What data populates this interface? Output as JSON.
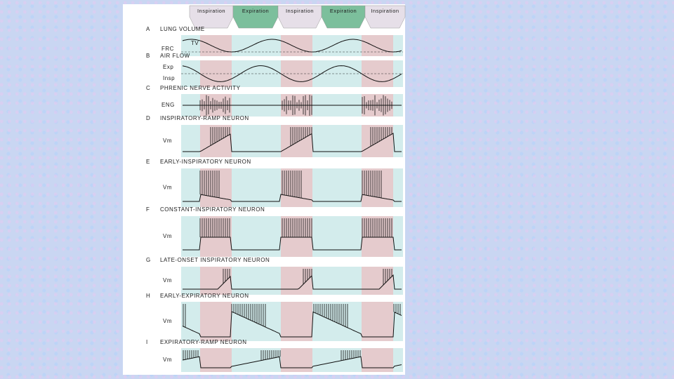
{
  "phases": [
    "Inspiration",
    "Expiration",
    "Inspiration",
    "Expiration",
    "Inspiration"
  ],
  "panels": [
    {
      "letter": "A",
      "title": "LUNG VOLUME",
      "labels": [
        "TV",
        "FRC"
      ]
    },
    {
      "letter": "B",
      "title": "AIR FLOW",
      "labels": [
        "Exp",
        "Insp"
      ]
    },
    {
      "letter": "C",
      "title": "PHRENIC NERVE ACTIVITY",
      "labels": [
        "ENG"
      ]
    },
    {
      "letter": "D",
      "title": "INSPIRATORY-RAMP NEURON",
      "labels": [
        "Vm"
      ]
    },
    {
      "letter": "E",
      "title": "EARLY-INSPIRATORY NEURON",
      "labels": [
        "Vm"
      ]
    },
    {
      "letter": "F",
      "title": "CONSTANT-INSPIRATORY NEURON",
      "labels": [
        "Vm"
      ]
    },
    {
      "letter": "G",
      "title": "LATE-ONSET INSPIRATORY NEURON",
      "labels": [
        "Vm"
      ]
    },
    {
      "letter": "H",
      "title": "EARLY-EXPIRATORY NEURON",
      "labels": [
        "Vm"
      ]
    },
    {
      "letter": "I",
      "title": "EXPIRATORY-RAMP NEURON",
      "labels": [
        "Vm"
      ]
    }
  ]
}
